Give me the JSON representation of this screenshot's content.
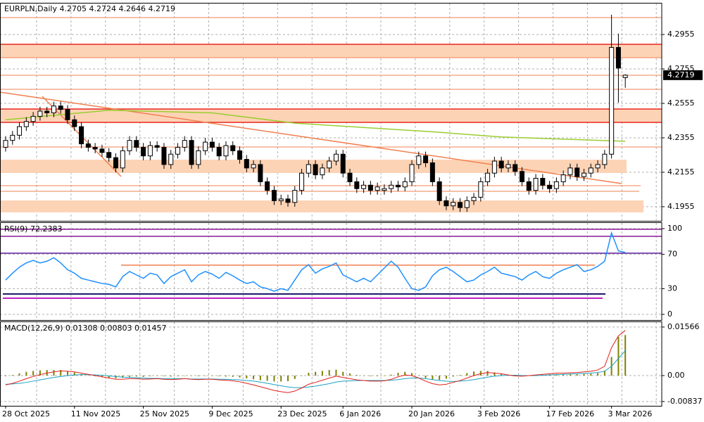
{
  "chart_data": [
    {
      "type": "candlestick",
      "title": "EURPLN,Daily",
      "categories": [
        "28 Oct 2025",
        null,
        null,
        null,
        null,
        null,
        null,
        null,
        null,
        null,
        "11 Nov 2025",
        null,
        null,
        null,
        null,
        null,
        null,
        null,
        null,
        null,
        "25 Nov 2025",
        null,
        null,
        null,
        null,
        null,
        null,
        null,
        null,
        null,
        "9 Dec 2025",
        null,
        null,
        null,
        null,
        null,
        null,
        null,
        null,
        null,
        "23 Dec 2025",
        null,
        null,
        null,
        null,
        null,
        null,
        null,
        null,
        "6 Jan 2026",
        null,
        null,
        null,
        null,
        null,
        null,
        null,
        null,
        null,
        "20 Jan 2026",
        null,
        null,
        null,
        null,
        null,
        null,
        null,
        null,
        null,
        "3 Feb 2026",
        null,
        null,
        null,
        null,
        null,
        null,
        null,
        null,
        null,
        "17 Feb 2026",
        null,
        null,
        null,
        null,
        null,
        null,
        null,
        null,
        "3 Mar 2026",
        null,
        null
      ],
      "open": [
        4.23,
        4.234,
        4.237,
        4.242,
        4.245,
        4.248,
        4.251,
        4.25,
        4.254,
        4.252,
        4.246,
        4.242,
        4.232,
        4.23,
        4.229,
        4.227,
        4.224,
        4.218,
        4.228,
        4.234,
        4.23,
        4.225,
        4.231,
        4.23,
        4.22,
        4.226,
        4.23,
        4.234,
        4.22,
        4.228,
        4.233,
        4.23,
        4.225,
        4.231,
        4.228,
        4.223,
        4.218,
        4.22,
        4.21,
        4.205,
        4.199,
        4.2,
        4.198,
        4.205,
        4.215,
        4.22,
        4.214,
        4.218,
        4.222,
        4.226,
        4.215,
        4.21,
        4.206,
        4.208,
        4.205,
        4.205,
        4.206,
        4.208,
        4.207,
        4.21,
        4.22,
        4.225,
        4.221,
        4.21,
        4.199,
        4.196,
        4.198,
        4.195,
        4.199,
        4.201,
        4.21,
        4.215,
        4.222,
        4.218,
        4.22,
        4.216,
        4.21,
        4.205,
        4.212,
        4.208,
        4.206,
        4.21,
        4.214,
        4.218,
        4.213,
        4.215,
        4.218,
        4.22,
        4.226,
        4.288,
        4.2705
      ],
      "high": [
        4.2365,
        4.2395,
        4.2445,
        4.2475,
        4.2505,
        4.2535,
        4.2535,
        4.2565,
        4.2565,
        4.2545,
        4.2485,
        4.2445,
        4.2345,
        4.2325,
        4.2315,
        4.2295,
        4.2265,
        4.2305,
        4.2365,
        4.2365,
        4.2325,
        4.2335,
        4.2335,
        4.2325,
        4.2285,
        4.2325,
        4.2365,
        4.2365,
        4.2305,
        4.2355,
        4.2355,
        4.2325,
        4.2335,
        4.2335,
        4.2305,
        4.2255,
        4.2225,
        4.2225,
        4.2125,
        4.2075,
        4.2025,
        4.2025,
        4.2075,
        4.2175,
        4.2225,
        4.2225,
        4.2205,
        4.2245,
        4.2285,
        4.2285,
        4.2175,
        4.2125,
        4.2105,
        4.2105,
        4.2095,
        4.2085,
        4.2105,
        4.2105,
        4.2125,
        4.2225,
        4.2275,
        4.2275,
        4.2235,
        4.2125,
        4.2015,
        4.2005,
        4.2005,
        4.2015,
        4.2035,
        4.2125,
        4.2175,
        4.2245,
        4.2245,
        4.2225,
        4.2225,
        4.2185,
        4.2125,
        4.2145,
        4.2145,
        4.2105,
        4.2125,
        4.2165,
        4.2205,
        4.2205,
        4.2175,
        4.2205,
        4.2225,
        4.2285,
        4.307,
        4.296,
        4.2724
      ],
      "low": [
        4.2275,
        4.2315,
        4.2345,
        4.2395,
        4.2425,
        4.2455,
        4.2475,
        4.2475,
        4.2495,
        4.2435,
        4.2395,
        4.2295,
        4.2275,
        4.2265,
        4.2245,
        4.2215,
        4.2155,
        4.2155,
        4.2255,
        4.2275,
        4.2225,
        4.2225,
        4.2275,
        4.2175,
        4.2175,
        4.2235,
        4.2275,
        4.2175,
        4.2175,
        4.2255,
        4.2275,
        4.2225,
        4.2225,
        4.2255,
        4.2205,
        4.2155,
        4.2155,
        4.2075,
        4.2025,
        4.1965,
        4.1965,
        4.1955,
        4.1955,
        4.2025,
        4.2125,
        4.2115,
        4.2115,
        4.2155,
        4.2195,
        4.2125,
        4.2075,
        4.2035,
        4.2035,
        4.2025,
        4.2025,
        4.2025,
        4.2035,
        4.2045,
        4.2045,
        4.2075,
        4.2175,
        4.2185,
        4.2075,
        4.1965,
        4.1935,
        4.1935,
        4.1925,
        4.1925,
        4.1965,
        4.1985,
        4.2075,
        4.2125,
        4.2155,
        4.2155,
        4.2135,
        4.2075,
        4.2025,
        4.2025,
        4.2055,
        4.2035,
        4.2035,
        4.2075,
        4.2115,
        4.2105,
        4.2105,
        4.2125,
        4.2155,
        4.2175,
        4.2235,
        4.256,
        4.2646
      ],
      "close": [
        4.234,
        4.237,
        4.242,
        4.245,
        4.248,
        4.251,
        4.25,
        4.254,
        4.252,
        4.246,
        4.242,
        4.232,
        4.23,
        4.229,
        4.227,
        4.224,
        4.218,
        4.228,
        4.234,
        4.23,
        4.225,
        4.231,
        4.23,
        4.22,
        4.226,
        4.23,
        4.234,
        4.22,
        4.228,
        4.233,
        4.23,
        4.225,
        4.231,
        4.228,
        4.223,
        4.218,
        4.22,
        4.21,
        4.205,
        4.199,
        4.2,
        4.198,
        4.205,
        4.215,
        4.22,
        4.214,
        4.218,
        4.222,
        4.226,
        4.215,
        4.21,
        4.206,
        4.208,
        4.205,
        4.207,
        4.206,
        4.208,
        4.207,
        4.21,
        4.22,
        4.225,
        4.221,
        4.21,
        4.199,
        4.196,
        4.198,
        4.195,
        4.199,
        4.201,
        4.21,
        4.215,
        4.222,
        4.218,
        4.22,
        4.216,
        4.21,
        4.205,
        4.212,
        4.208,
        4.206,
        4.21,
        4.214,
        4.218,
        4.213,
        4.215,
        4.218,
        4.22,
        4.226,
        4.288,
        4.276,
        4.2719
      ],
      "ma": {
        "x": [
          0,
          15,
          30,
          42,
          62,
          72,
          90
        ],
        "values": [
          4.246,
          4.2515,
          4.25,
          4.244,
          4.239,
          4.236,
          4.2335
        ],
        "color": "#9acd32"
      },
      "ylim": [
        4.1877,
        4.3135
      ],
      "yticks": [
        4.1955,
        4.2155,
        4.2355,
        4.2555,
        4.2755,
        4.2955
      ],
      "grid": true
    },
    {
      "type": "line",
      "title": "RSI(9)",
      "color": "#1e90ff",
      "values": [
        40,
        48,
        55,
        60,
        63,
        60,
        62,
        66,
        60,
        52,
        48,
        42,
        40,
        38,
        36,
        35,
        32,
        44,
        50,
        46,
        42,
        48,
        46,
        36,
        44,
        48,
        52,
        38,
        46,
        50,
        47,
        42,
        49,
        45,
        40,
        36,
        38,
        32,
        30,
        27,
        30,
        28,
        40,
        52,
        58,
        48,
        53,
        56,
        60,
        46,
        42,
        38,
        42,
        38,
        46,
        54,
        62,
        55,
        42,
        30,
        28,
        32,
        45,
        52,
        55,
        50,
        44,
        38,
        40,
        46,
        50,
        55,
        48,
        46,
        44,
        40,
        46,
        50,
        44,
        42,
        48,
        52,
        55,
        58,
        50,
        52,
        56,
        62,
        95,
        74,
        72.2383
      ],
      "ylim": [
        -6.6,
        106.6
      ],
      "yticks": [
        0,
        30,
        70,
        100
      ],
      "grid": true
    },
    {
      "type": "macd",
      "title": "MACD(12,26,9)",
      "series": [
        {
          "color": "#808000",
          "values": [
            -0.0002,
            0.0002,
            0.0007,
            0.0012,
            0.0015,
            0.0017,
            0.0018,
            0.0018,
            0.0018,
            0.0014,
            0.001,
            0.0005,
            0.0001,
            -0.0002,
            -0.0005,
            -0.0007,
            -0.0009,
            -0.0007,
            -0.0004,
            -0.0003,
            -0.0004,
            -0.0002,
            -0.0001,
            -0.0002,
            -0.0003,
            -0.0002,
            0.0,
            -0.0001,
            -0.0002,
            -0.0001,
            -0.0001,
            -0.0002,
            -0.0003,
            -0.0004,
            -0.0006,
            -0.0009,
            -0.0012,
            -0.0015,
            -0.0017,
            -0.0019,
            -0.0019,
            -0.0018,
            -0.0011,
            -0.0001,
            0.0009,
            0.0012,
            0.0015,
            0.0018,
            0.0019,
            0.0012,
            0.0007,
            0.0002,
            0.0,
            -0.0002,
            -0.0002,
            -0.0001,
            0.0003,
            0.0009,
            0.0012,
            0.0008,
            0.0,
            -0.0008,
            -0.0013,
            -0.0014,
            -0.001,
            -0.0003,
            0.0002,
            0.0008,
            0.0013,
            0.0015,
            0.0015,
            0.001,
            0.0006,
            0.0001,
            -0.0002,
            -0.0002,
            0.0,
            0.0002,
            0.0003,
            0.0004,
            0.0005,
            0.0004,
            0.0004,
            0.0004,
            0.0005,
            0.0006,
            0.0008,
            0.0016,
            0.006,
            0.0125,
            0.01308
          ]
        },
        {
          "color": "#1ba1c4",
          "values": [
            -0.0028,
            -0.0027,
            -0.0025,
            -0.0022,
            -0.0018,
            -0.0014,
            -0.001,
            -0.0006,
            -0.0003,
            0.0,
            0.0002,
            0.0003,
            0.0003,
            0.0002,
            0.0001,
            -0.0001,
            -0.0003,
            -0.0005,
            -0.0006,
            -0.0007,
            -0.0008,
            -0.0009,
            -0.0009,
            -0.001,
            -0.001,
            -0.001,
            -0.001,
            -0.0011,
            -0.0011,
            -0.0011,
            -0.0011,
            -0.0012,
            -0.0012,
            -0.0013,
            -0.0014,
            -0.0016,
            -0.0018,
            -0.0021,
            -0.0025,
            -0.0029,
            -0.0033,
            -0.0037,
            -0.0039,
            -0.0039,
            -0.0037,
            -0.0034,
            -0.003,
            -0.0026,
            -0.0021,
            -0.0018,
            -0.0017,
            -0.0016,
            -0.0016,
            -0.0016,
            -0.0016,
            -0.0016,
            -0.0015,
            -0.0013,
            -0.001,
            -0.0008,
            -0.0008,
            -0.001,
            -0.0013,
            -0.0016,
            -0.0018,
            -0.0019,
            -0.0018,
            -0.0016,
            -0.0013,
            -0.0009,
            -0.0005,
            -0.0002,
            0.0,
            0.0001,
            0.0001,
            0.0,
            0.0,
            0.0,
            0.0001,
            0.0002,
            0.0003,
            0.0004,
            0.0005,
            0.0006,
            0.0007,
            0.0008,
            0.001,
            0.0014,
            0.003,
            0.0055,
            0.00803
          ]
        },
        {
          "color": "#e0201b",
          "values": [
            -0.003,
            -0.0025,
            -0.0018,
            -0.001,
            -0.0003,
            0.0003,
            0.0008,
            0.0012,
            0.0015,
            0.0014,
            0.0012,
            0.0008,
            0.0004,
            0.0,
            -0.0004,
            -0.0008,
            -0.0012,
            -0.0012,
            -0.001,
            -0.001,
            -0.0012,
            -0.0011,
            -0.001,
            -0.0012,
            -0.0013,
            -0.0012,
            -0.001,
            -0.0012,
            -0.0013,
            -0.0012,
            -0.0012,
            -0.0014,
            -0.0015,
            -0.0017,
            -0.002,
            -0.0025,
            -0.003,
            -0.0036,
            -0.0042,
            -0.0048,
            -0.0052,
            -0.0055,
            -0.005,
            -0.004,
            -0.0028,
            -0.0022,
            -0.0015,
            -0.0008,
            -0.0002,
            -0.0006,
            -0.001,
            -0.0014,
            -0.0016,
            -0.0018,
            -0.0018,
            -0.0017,
            -0.0012,
            -0.0004,
            0.0002,
            0.0,
            -0.0008,
            -0.0018,
            -0.0026,
            -0.003,
            -0.0028,
            -0.0022,
            -0.0016,
            -0.0008,
            0.0,
            0.0006,
            0.001,
            0.0008,
            0.0006,
            0.0002,
            -0.0001,
            -0.0002,
            0.0,
            0.0002,
            0.0004,
            0.0006,
            0.0008,
            0.0008,
            0.0009,
            0.001,
            0.0012,
            0.0014,
            0.0018,
            0.003,
            0.009,
            0.0128,
            0.01457
          ]
        }
      ],
      "ylim": [
        -0.00976,
        0.01725
      ],
      "yticks": [
        -0.00837,
        {
          "value": 0,
          "label": "0.00"
        },
        0.01566
      ],
      "grid": true
    }
  ]
}
